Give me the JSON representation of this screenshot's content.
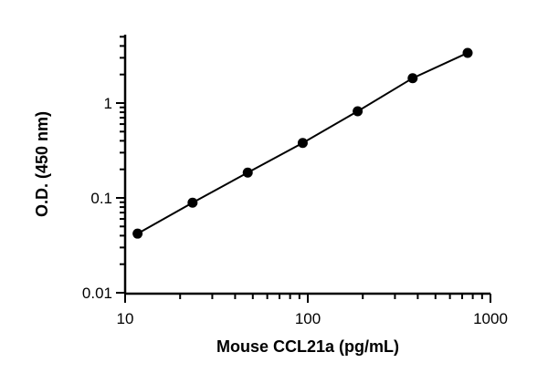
{
  "chart_data": {
    "type": "scatter",
    "title": "",
    "xlabel": "Mouse CCL21a (pg/mL)",
    "ylabel": "O.D. (450 nm)",
    "xscale": "log",
    "yscale": "log",
    "xlim": [
      10,
      1000
    ],
    "ylim": [
      0.01,
      5
    ],
    "xticks": [
      10,
      100,
      1000
    ],
    "xtick_labels": [
      "10",
      "100",
      "1000"
    ],
    "yticks": [
      0.01,
      0.1,
      1
    ],
    "ytick_labels": [
      "0.01",
      "0.1",
      "1"
    ],
    "grid": false,
    "legend": "none",
    "series": [
      {
        "x": [
          11.7,
          23.4,
          46.9,
          93.8,
          187.5,
          375,
          750
        ],
        "y": [
          0.042,
          0.089,
          0.185,
          0.38,
          0.82,
          1.83,
          3.38
        ],
        "fit_line": true,
        "color": "#000000"
      }
    ]
  }
}
